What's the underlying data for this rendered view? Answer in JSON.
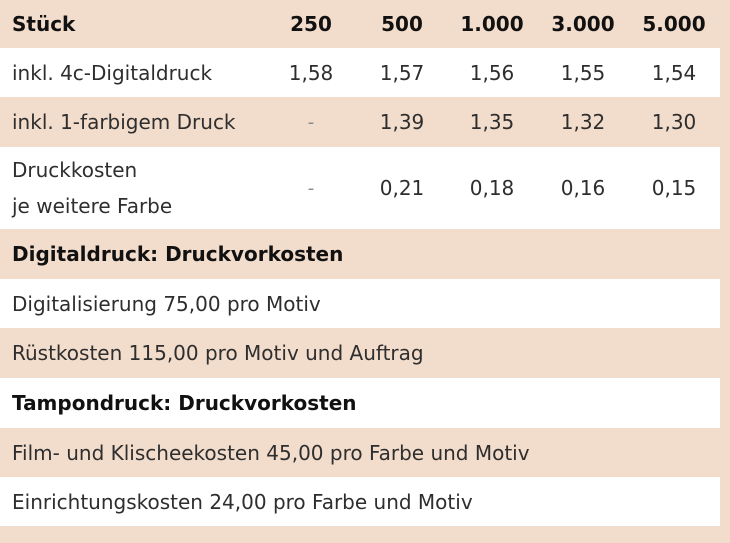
{
  "header": {
    "label": "Stück",
    "quantities": [
      "250",
      "500",
      "1.000",
      "3.000",
      "5.000"
    ]
  },
  "rows": [
    {
      "label": "inkl. 4c-Digitaldruck",
      "values": [
        "1,58",
        "1,57",
        "1,56",
        "1,55",
        "1,54"
      ]
    },
    {
      "label": "inkl. 1-farbigem Druck",
      "values": [
        "-",
        "1,39",
        "1,35",
        "1,32",
        "1,30"
      ]
    },
    {
      "label_line1": "Druckkosten",
      "label_line2": "je weitere Farbe",
      "values": [
        "-",
        "0,21",
        "0,18",
        "0,16",
        "0,15"
      ]
    }
  ],
  "digital": {
    "heading": "Digitaldruck: Druckvorkosten",
    "items": [
      "Digitalisierung 75,00 pro Motiv",
      "Rüstkosten 115,00 pro Motiv und Auftrag"
    ]
  },
  "tampon": {
    "heading": "Tampondruck: Druckvorkosten",
    "items": [
      "Film- und Klischeekosten 45,00 pro Farbe und Motiv",
      "Einrichtungskosten 24,00 pro Farbe und Motiv"
    ]
  }
}
